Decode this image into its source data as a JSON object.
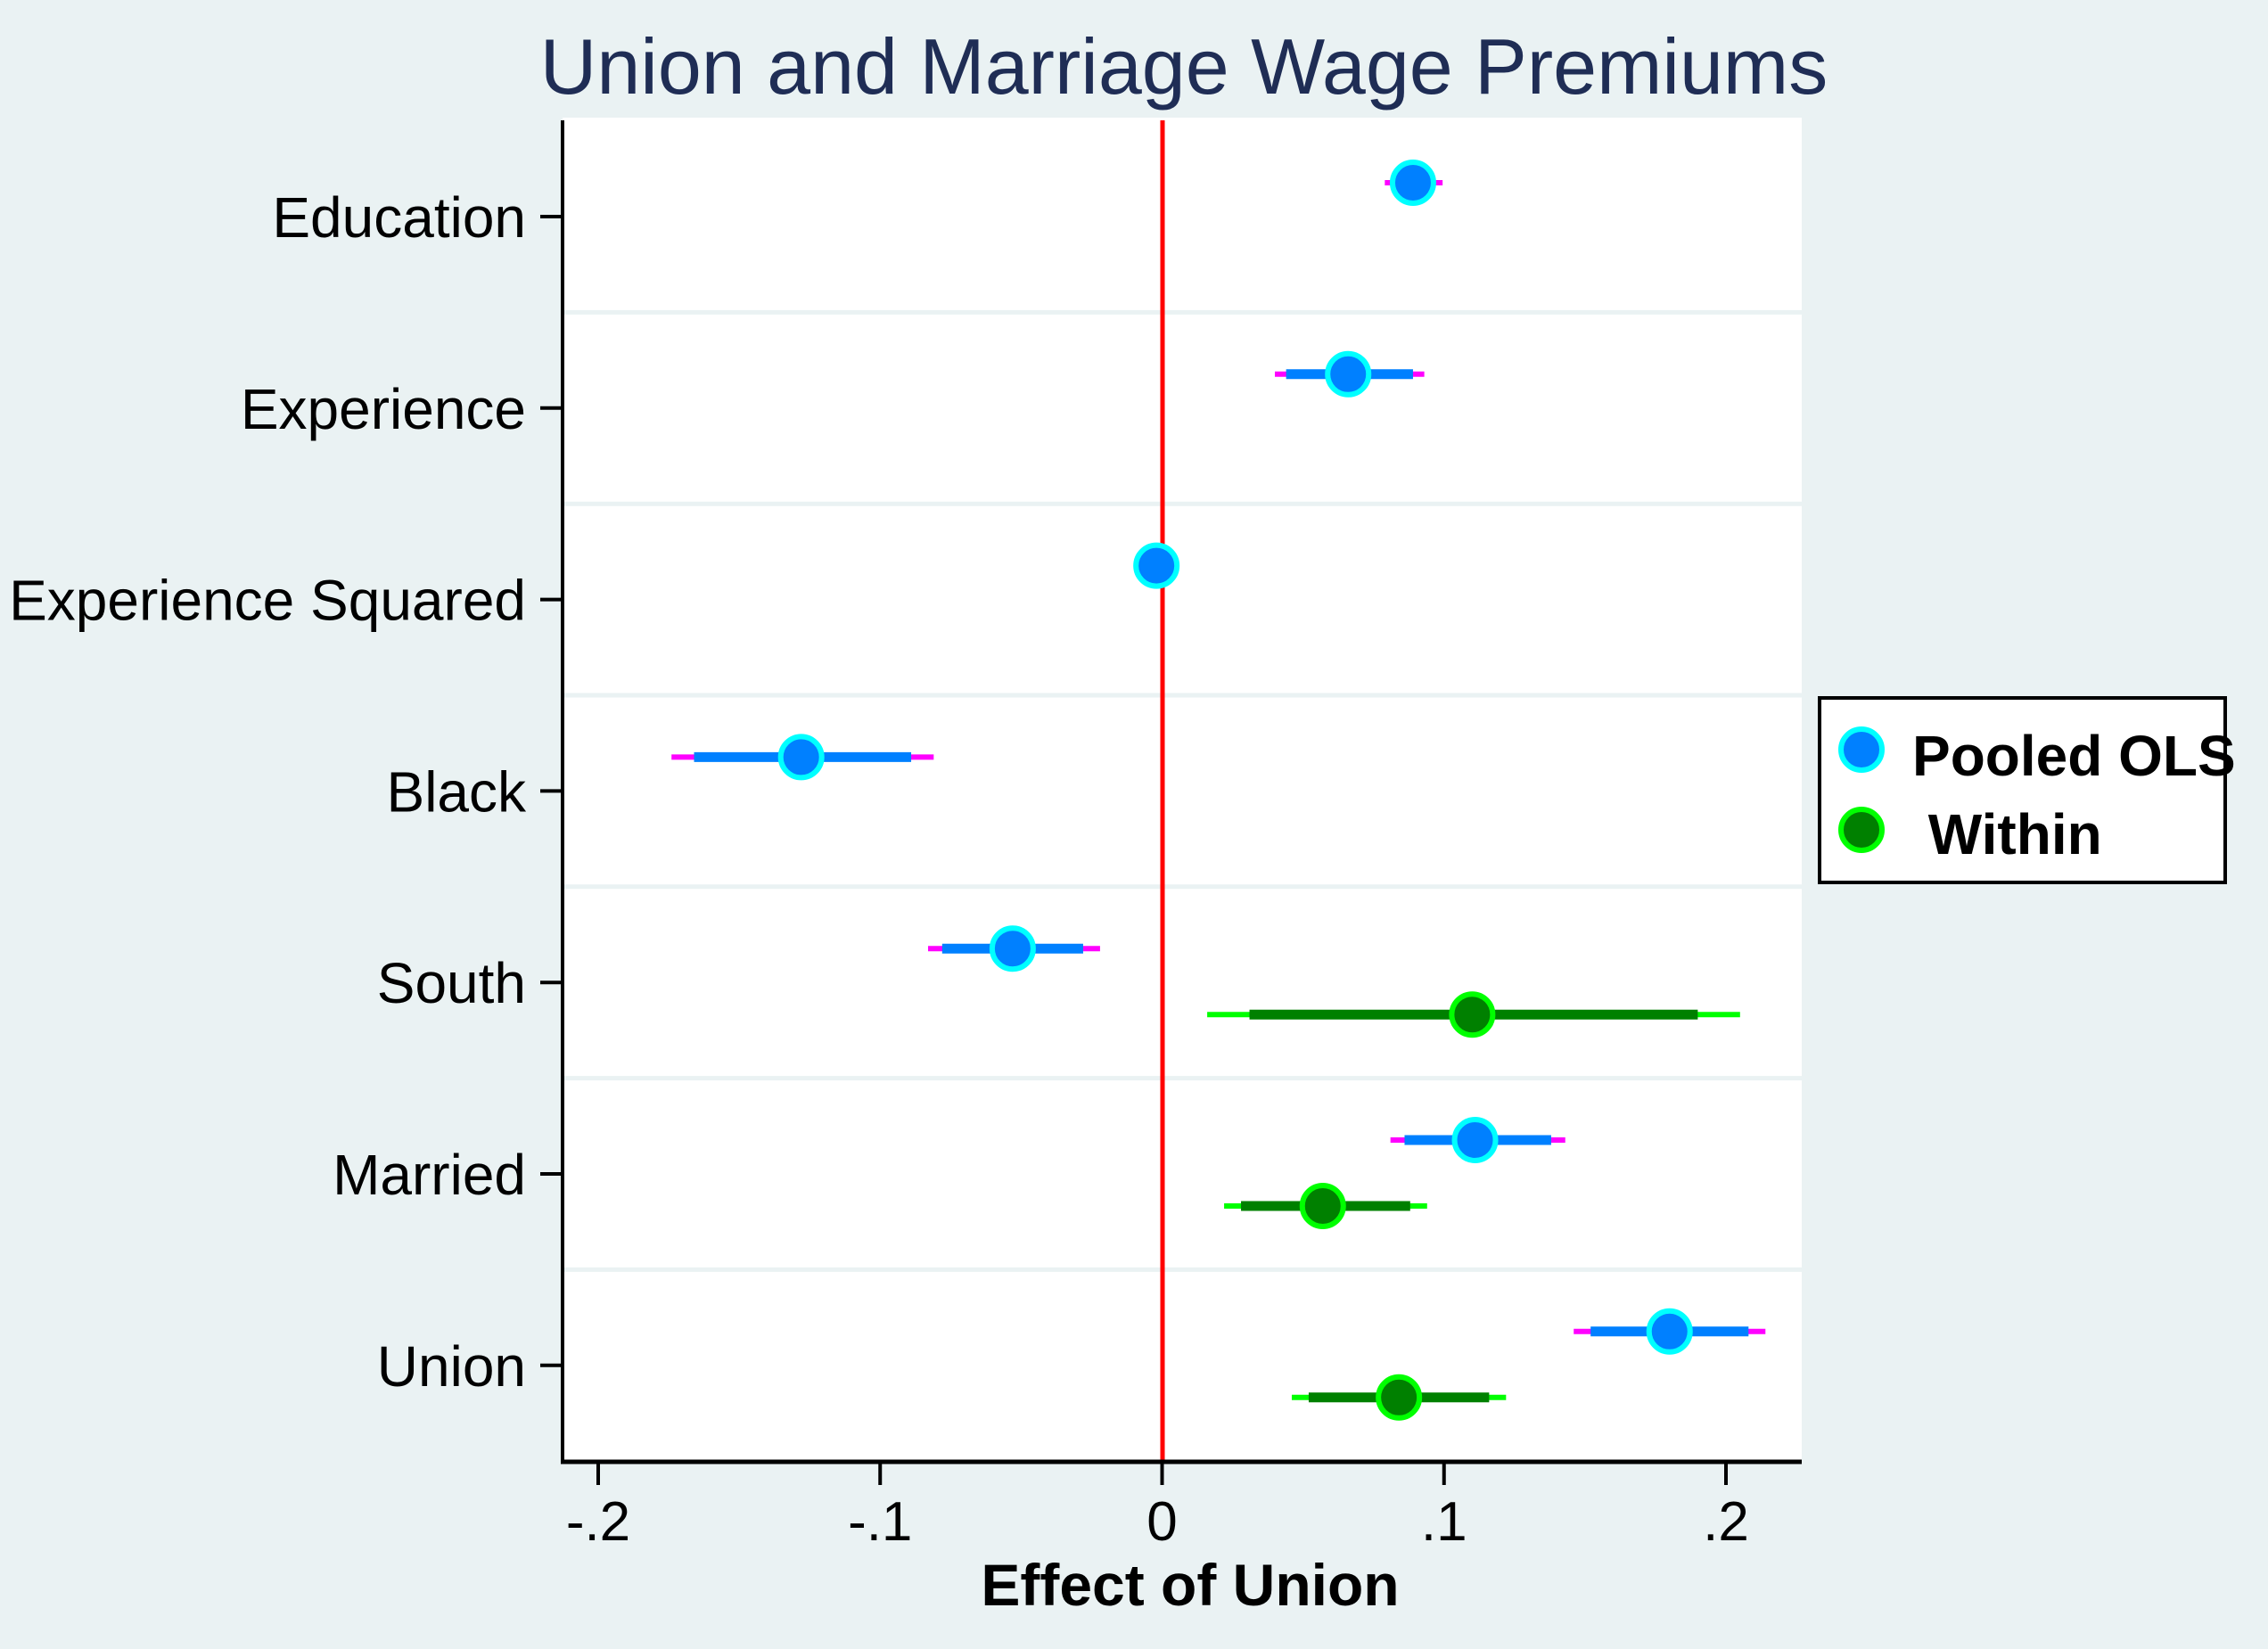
{
  "chart_data": {
    "type": "scatter",
    "subtype": "coefficient-plot",
    "title": "Union and Marriage Wage Premiums",
    "xlabel": "Effect of Union",
    "ylabel": "",
    "xlim": [
      -0.21,
      0.227
    ],
    "xticks": [
      -0.2,
      -0.1,
      0,
      0.1,
      0.2
    ],
    "xtick_labels": [
      "-.2",
      "-.1",
      "0",
      ".1",
      ".2"
    ],
    "reference_line": {
      "x": 0,
      "color": "#ff0000"
    },
    "categories": [
      "Education",
      "Experience",
      "Experience Squared",
      "Black",
      "South",
      "Married",
      "Union"
    ],
    "legend": {
      "position": "right",
      "entries": [
        {
          "label": "Pooled OLS",
          "marker_fill": "#0080ff",
          "marker_edge": "#00ffff"
        },
        {
          "label": " Within",
          "marker_fill": "#008000",
          "marker_edge": "#00ff00"
        }
      ]
    },
    "series": [
      {
        "name": "Pooled OLS",
        "marker_fill": "#0080ff",
        "marker_edge": "#00ffff",
        "ci90_color": "#0080ff",
        "ci95_color": "#ff00ff",
        "points": [
          {
            "category": "Education",
            "estimate": 0.089,
            "ci90": [
              0.081,
              0.097
            ],
            "ci95": [
              0.079,
              0.0995
            ]
          },
          {
            "category": "Experience",
            "estimate": 0.066,
            "ci90": [
              0.044,
              0.089
            ],
            "ci95": [
              0.04,
              0.093
            ]
          },
          {
            "category": "Experience Squared",
            "estimate": -0.002,
            "ci90": [
              -0.003,
              -0.001
            ],
            "ci95": [
              -0.003,
              -0.001
            ]
          },
          {
            "category": "Black",
            "estimate": -0.128,
            "ci90": [
              -0.166,
              -0.089
            ],
            "ci95": [
              -0.174,
              -0.081
            ]
          },
          {
            "category": "South",
            "estimate": -0.053,
            "ci90": [
              -0.078,
              -0.028
            ],
            "ci95": [
              -0.083,
              -0.022
            ]
          },
          {
            "category": "Married",
            "estimate": 0.111,
            "ci90": [
              0.086,
              0.138
            ],
            "ci95": [
              0.081,
              0.143
            ]
          },
          {
            "category": "Union",
            "estimate": 0.18,
            "ci90": [
              0.152,
              0.208
            ],
            "ci95": [
              0.146,
              0.214
            ]
          }
        ]
      },
      {
        "name": "Within",
        "marker_fill": "#008000",
        "marker_edge": "#00ff00",
        "ci90_color": "#008000",
        "ci95_color": "#00ff00",
        "points": [
          {
            "category": "South",
            "estimate": 0.11,
            "ci90": [
              0.031,
              0.19
            ],
            "ci95": [
              0.016,
              0.205
            ]
          },
          {
            "category": "Married",
            "estimate": 0.057,
            "ci90": [
              0.028,
              0.088
            ],
            "ci95": [
              0.022,
              0.094
            ]
          },
          {
            "category": "Union",
            "estimate": 0.084,
            "ci90": [
              0.052,
              0.116
            ],
            "ci95": [
              0.046,
              0.122
            ]
          }
        ]
      }
    ]
  },
  "colors": {
    "background": "#eaf2f3",
    "plot_background": "#ffffff",
    "separator": "#eaf2f3",
    "title": "#1f2d55",
    "axis": "#000000",
    "reference_line": "#ff0000"
  }
}
